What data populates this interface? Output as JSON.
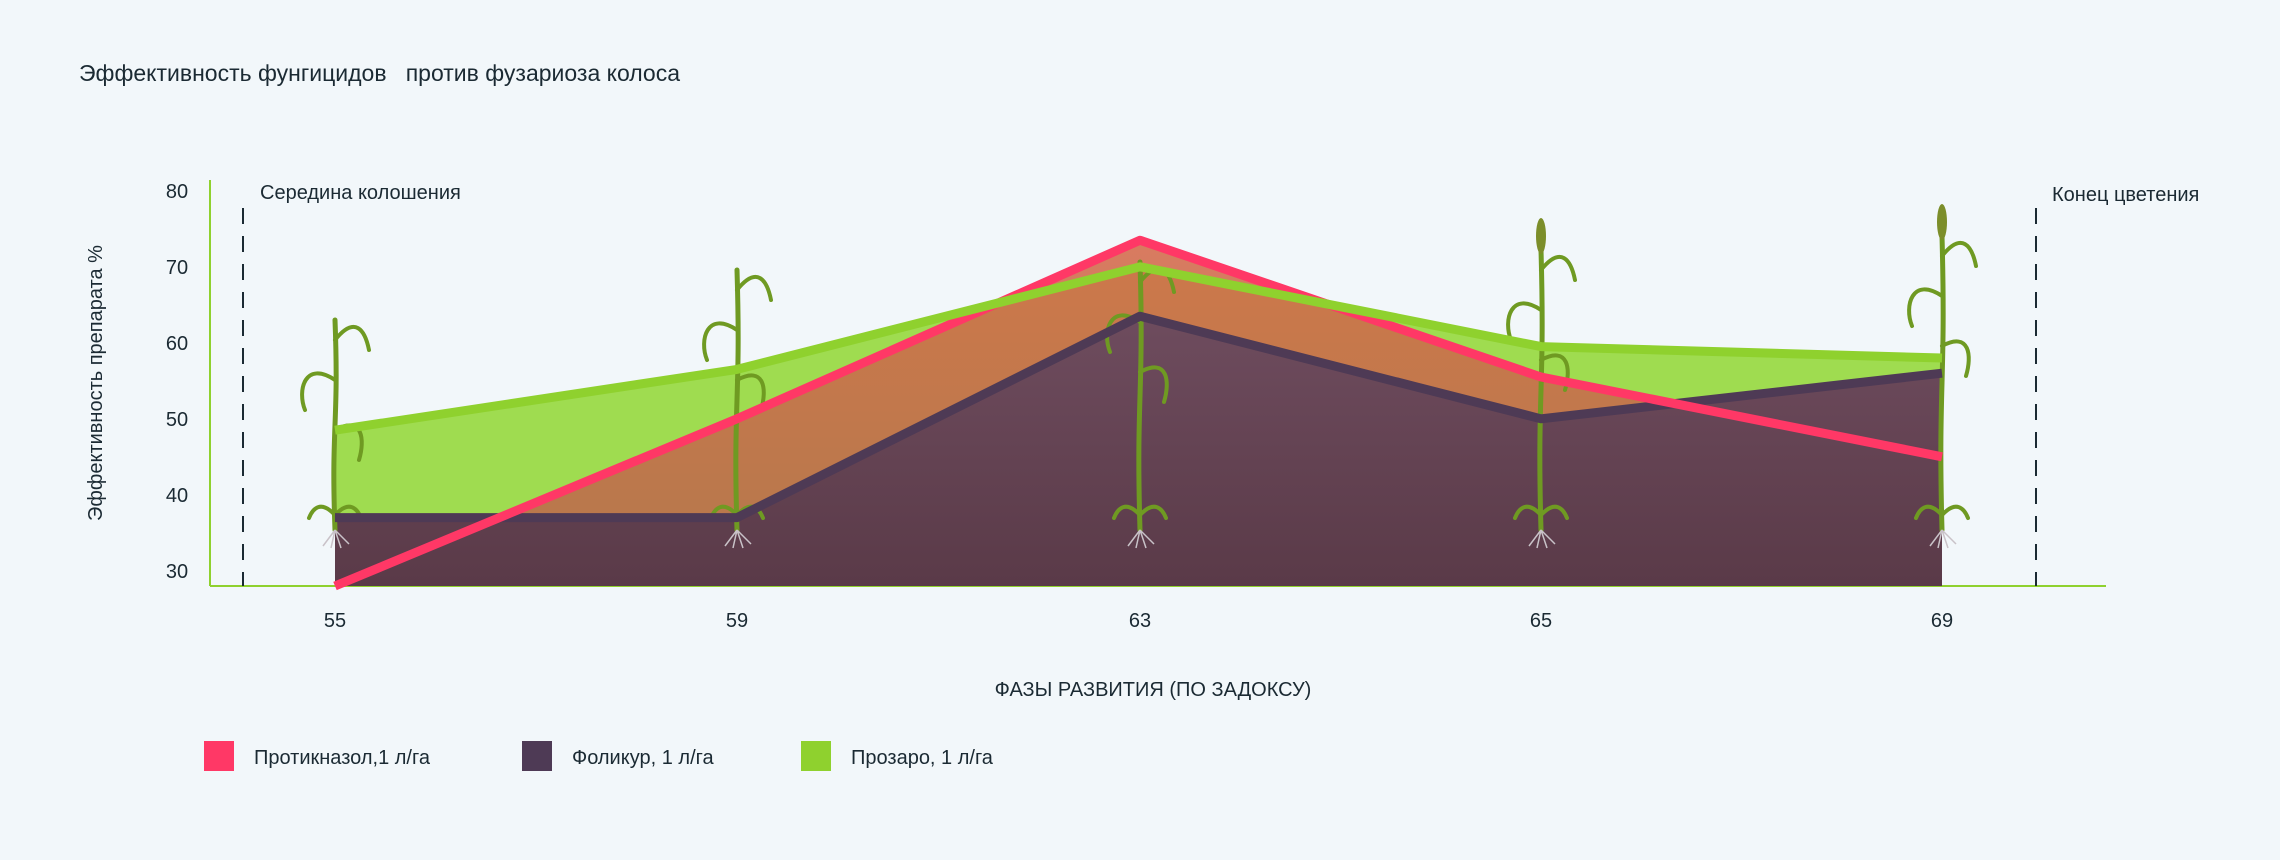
{
  "chart_data": {
    "type": "area",
    "title": "Эффективность фунгицидов   против фузариоза колоса",
    "xlabel": "ФАЗЫ РАЗВИТИЯ (ПО ЗАДОКСУ)",
    "ylabel": "Эффективность препарата %",
    "categories": [
      "55",
      "59",
      "63",
      "65",
      "69"
    ],
    "yticks": [
      "80",
      "70",
      "60",
      "50",
      "40",
      "30"
    ],
    "ylim": [
      28,
      80
    ],
    "grid": false,
    "legend_position": "bottom-left",
    "annotations": {
      "start": "Середина колошения",
      "end": "Конец цветения"
    },
    "series": [
      {
        "name": "Прозаро, 1 л/га",
        "values": [
          48.5,
          56.5,
          70,
          59.5,
          58
        ],
        "color": "#8fd12e"
      },
      {
        "name": "Протикназол,1 л/га",
        "values": [
          28,
          50,
          73.5,
          55.5,
          45
        ],
        "color": "#ff3866"
      },
      {
        "name": "Фоликур, 1 л/га",
        "values": [
          37,
          37,
          63.5,
          50,
          56
        ],
        "color": "#4e3a55"
      }
    ],
    "legend": [
      {
        "label": "Протикназол,1 л/га",
        "color": "#ff3866"
      },
      {
        "label": "Фоликур, 1 л/га",
        "color": "#4e3a55"
      },
      {
        "label": "Прозаро, 1 л/га",
        "color": "#8fd12e"
      }
    ]
  }
}
